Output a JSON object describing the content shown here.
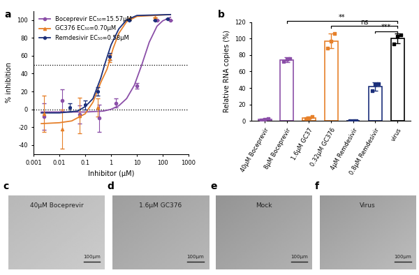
{
  "chart_data": [
    {
      "panel_label": "a",
      "type": "scatter",
      "log": "x",
      "x_label": "Inhibitor (μM)",
      "y_label": "% inhibition",
      "xlim": [
        0.001,
        1000
      ],
      "xticks": [
        0.001,
        0.01,
        0.1,
        1,
        10,
        100,
        1000
      ],
      "ylim": [
        -50,
        110
      ],
      "yticks": [
        -40,
        -20,
        0,
        20,
        40,
        60,
        80,
        100
      ],
      "hlines": [
        0,
        50
      ],
      "hline_style": "dotted",
      "legend": "upper left",
      "series": [
        {
          "name": "Boceprevir EC₅₀=15.57μM",
          "color": "#8b4fa8",
          "marker": "circle",
          "x": [
            0.0025,
            0.0125,
            0.06,
            0.35,
            1.5,
            10,
            60,
            200
          ],
          "values": [
            -8,
            10,
            -6,
            -10,
            7,
            26,
            100,
            100
          ],
          "errors": [
            15,
            12,
            10,
            15,
            5,
            3,
            0,
            0
          ],
          "fit_x": [
            0.002,
            0.1,
            0.5,
            1,
            2,
            4,
            8,
            15.57,
            30,
            60,
            100,
            200
          ],
          "fit_values": [
            -3,
            -3,
            -2,
            0,
            4,
            12,
            27,
            50,
            75,
            93,
            99,
            103
          ]
        },
        {
          "name": "GC376 EC₅₀=0.70μM",
          "color": "#e6802a",
          "marker": "triangle",
          "x": [
            0.0025,
            0.0125,
            0.06,
            0.3,
            0.9,
            5,
            50
          ],
          "values": [
            -5,
            -22,
            -7,
            2,
            57,
            101,
            103
          ],
          "errors": [
            20,
            22,
            20,
            10,
            4,
            0,
            0
          ],
          "fit_x": [
            0.002,
            0.01,
            0.03,
            0.1,
            0.2,
            0.4,
            0.7,
            1.2,
            2,
            4,
            10,
            200
          ],
          "fit_values": [
            -16,
            -15,
            -13,
            -5,
            8,
            30,
            45,
            68,
            85,
            98,
            104,
            106
          ]
        },
        {
          "name": "Remdesivir EC₅₀=0.58μM",
          "color": "#1b2f7a",
          "marker": "hexagon",
          "x": [
            0.025,
            0.1,
            0.3,
            0.9,
            5,
            50,
            150
          ],
          "values": [
            2,
            5,
            20,
            59,
            100,
            100,
            101
          ],
          "errors": [
            5,
            5,
            5,
            4,
            0,
            0,
            0
          ],
          "fit_x": [
            0.002,
            0.01,
            0.05,
            0.1,
            0.2,
            0.4,
            0.58,
            1,
            2,
            4,
            10,
            200
          ],
          "fit_values": [
            -4,
            -4,
            -2,
            3,
            12,
            35,
            51,
            72,
            90,
            100,
            105,
            106
          ]
        }
      ]
    },
    {
      "panel_label": "b",
      "type": "bar",
      "y_label": "Relative RNA copies (%)",
      "categories": [
        "40μM Boceprevir",
        "8μM Boceprevir",
        "1.6μM GC37",
        "0.32μM GC376",
        "4μM Remdesivir",
        "0.8μM Remdesivir",
        "virus"
      ],
      "values": [
        2,
        74,
        4,
        97,
        0.5,
        42,
        100
      ],
      "errors": [
        0.5,
        3,
        1.5,
        9,
        0.2,
        5,
        6
      ],
      "points": [
        [
          1.5,
          2,
          2.5
        ],
        [
          72,
          75,
          76
        ],
        [
          3,
          4,
          5
        ],
        [
          88,
          97,
          106
        ],
        [
          0.3,
          0.5,
          0.6
        ],
        [
          37,
          44,
          45
        ],
        [
          93,
          103,
          104
        ]
      ],
      "colors": [
        "#8b4fa8",
        "#8b4fa8",
        "#e6802a",
        "#e6802a",
        "#1b2f7a",
        "#1b2f7a",
        "#000000"
      ],
      "ylim": [
        0,
        120
      ],
      "yticks": [
        0,
        20,
        40,
        60,
        80,
        100,
        120
      ],
      "significance": [
        {
          "from": "0.8μM Remdesivir",
          "to": "virus",
          "label": "***"
        },
        {
          "from": "0.32μM GC376",
          "to": "virus",
          "label": "ns"
        },
        {
          "from": "8μM Boceprevir",
          "to": "virus",
          "label": "**"
        }
      ]
    }
  ],
  "image_panels": [
    {
      "panel_label": "c",
      "label": "40μM Boceprevir",
      "scale_bar": "100μm"
    },
    {
      "panel_label": "d",
      "label": "1.6μM GC376",
      "scale_bar": "100μm"
    },
    {
      "panel_label": "e",
      "label": "Mock",
      "scale_bar": "100μm"
    },
    {
      "panel_label": "f",
      "label": "Virus",
      "scale_bar": "100μm"
    }
  ]
}
